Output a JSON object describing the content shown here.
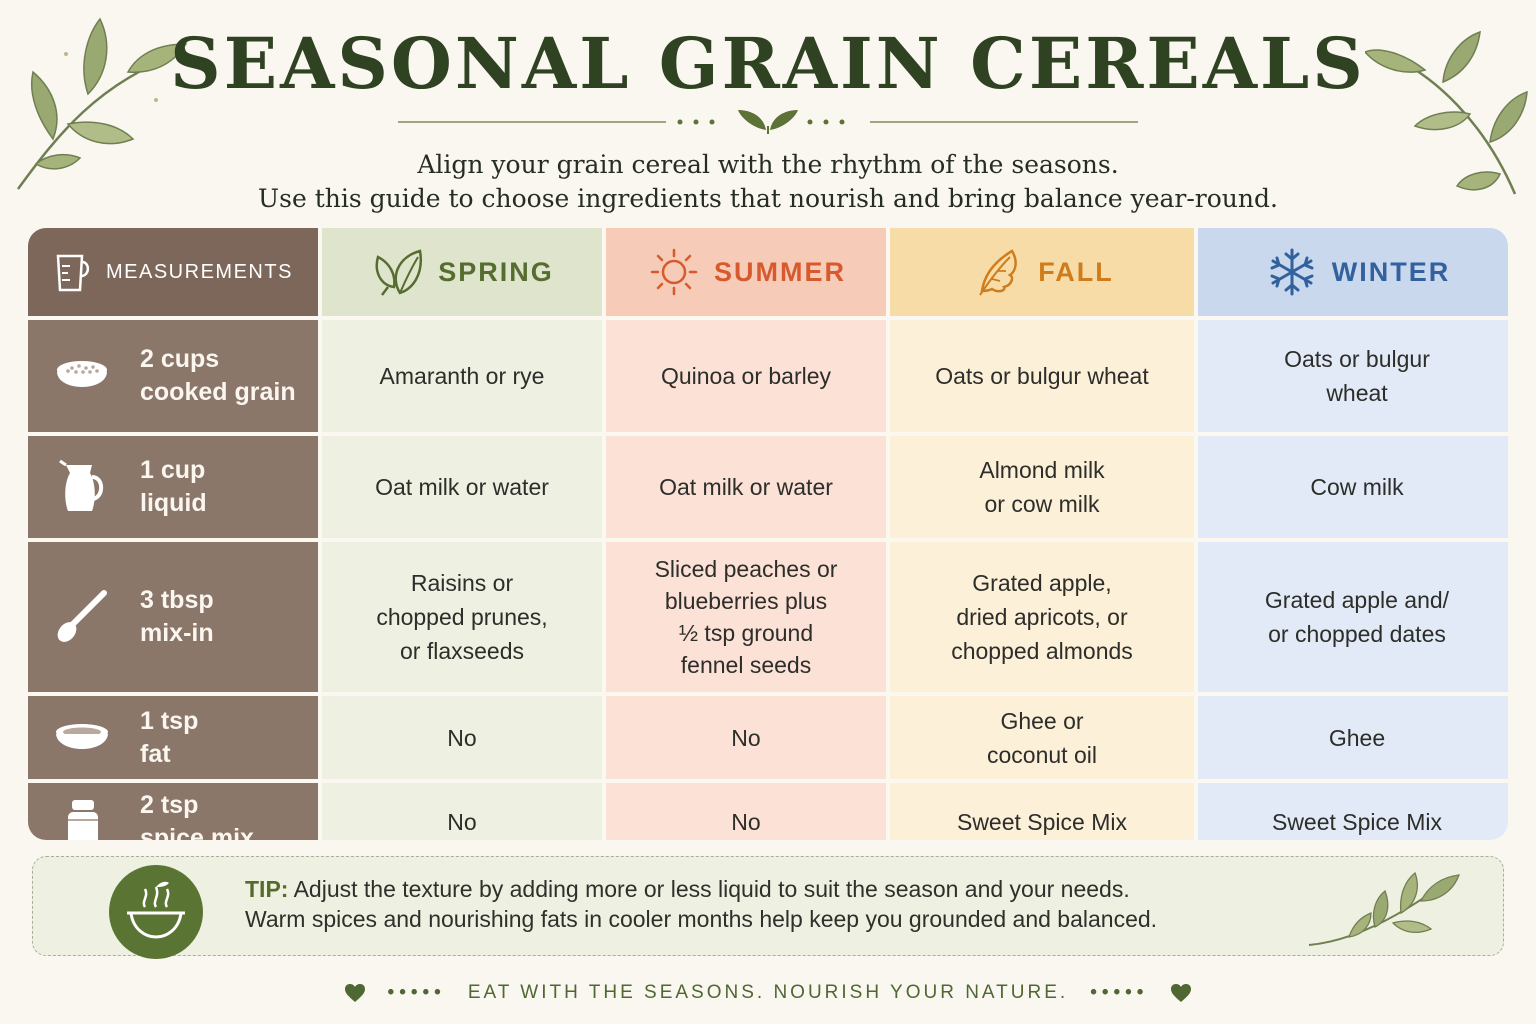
{
  "title": "SEASONAL GRAIN CEREALS",
  "subtitle": {
    "line1": "Align your grain cereal with the rhythm of the seasons.",
    "line2": "Use this guide to choose ingredients that nourish and bring balance year-round."
  },
  "table": {
    "measurements_header": "MEASUREMENTS",
    "seasons": {
      "spring": "SPRING",
      "summer": "SUMMER",
      "fall": "FALL",
      "winter": "WINTER"
    },
    "rows": [
      {
        "icon": "bowl-of-grain-icon",
        "m1": "2 cups",
        "m2": "cooked grain",
        "spring": "Amaranth or rye",
        "summer": "Quinoa or barley",
        "fall": "Oats or bulgur wheat",
        "winter_1": "Oats or bulgur",
        "winter_2": "wheat"
      },
      {
        "icon": "pitcher-icon",
        "m1": "1 cup",
        "m2": "liquid",
        "spring": "Oat milk or water",
        "summer": "Oat milk or water",
        "fall_1": "Almond milk",
        "fall_2": "or cow milk",
        "winter": "Cow milk"
      },
      {
        "icon": "spoon-icon",
        "m1": "3 tbsp",
        "m2": "mix-in",
        "spring_1": "Raisins or",
        "spring_2": "chopped prunes,",
        "spring_3": "or flaxseeds",
        "summer_1": "Sliced peaches or",
        "summer_2": "blueberries plus",
        "summer_3": "½ tsp ground",
        "summer_4": "fennel seeds",
        "fall_1": "Grated apple,",
        "fall_2": "dried apricots, or",
        "fall_3": "chopped almonds",
        "winter_1": "Grated apple and/",
        "winter_2": "or chopped dates"
      },
      {
        "icon": "dish-icon",
        "m1": "1 tsp",
        "m2": "fat",
        "spring": "No",
        "summer": "No",
        "fall_1": "Ghee or",
        "fall_2": "coconut oil",
        "winter": "Ghee"
      },
      {
        "icon": "spice-jar-icon",
        "m1": "2 tsp",
        "m2": "spice mix",
        "spring": "No",
        "summer": "No",
        "fall": "Sweet Spice Mix",
        "winter": "Sweet Spice Mix"
      }
    ]
  },
  "tip": {
    "label": "TIP:",
    "line1": "Adjust the texture by adding more or less liquid to suit the season and your needs.",
    "line2": "Warm spices and nourishing fats in cooler months help keep you grounded and balanced."
  },
  "footer": {
    "text": "EAT WITH THE SEASONS. NOURISH YOUR NATURE.",
    "dots": "•••••"
  },
  "colors": {
    "title": "#2f4222",
    "measurements": "#8b766a",
    "spring": "#566d2f",
    "summer": "#d75a2e",
    "fall": "#cf7d1c",
    "winter": "#33619e"
  }
}
